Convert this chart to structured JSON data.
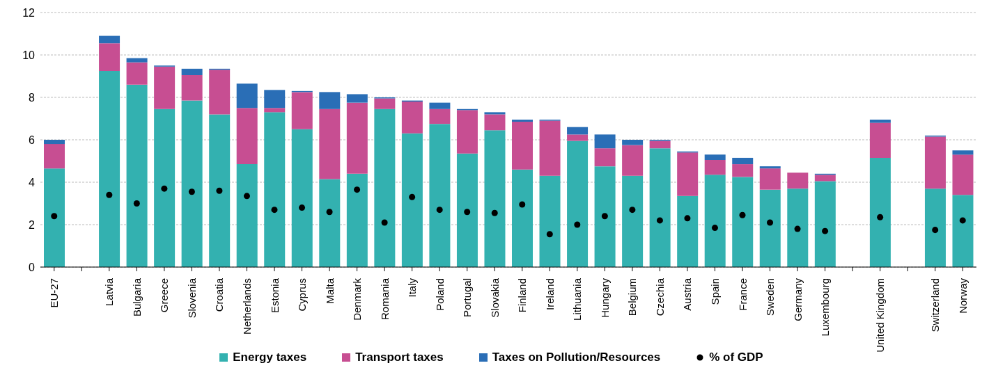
{
  "chart_data": {
    "type": "bar",
    "stacked": true,
    "categories": [
      "EU-27",
      null,
      "Latvia",
      "Bulgaria",
      "Greece",
      "Slovenia",
      "Croatia",
      "Netherlands",
      "Estonia",
      "Cyprus",
      "Malta",
      "Denmark",
      "Romania",
      "Italy",
      "Poland",
      "Portugal",
      "Slovakia",
      "Finland",
      "Ireland",
      "Lithuania",
      "Hungary",
      "Belgium",
      "Czechia",
      "Austria",
      "Spain",
      "France",
      "Sweden",
      "Germany",
      "Luxembourg",
      null,
      "United Kingdom",
      null,
      "Switzerland",
      "Norway"
    ],
    "series": [
      {
        "name": "Energy taxes",
        "color": "#33b1b0",
        "values": [
          4.65,
          null,
          9.25,
          8.6,
          7.45,
          7.85,
          7.2,
          4.85,
          7.3,
          6.5,
          4.15,
          4.4,
          7.45,
          6.3,
          6.75,
          5.35,
          6.45,
          4.6,
          4.3,
          5.95,
          4.75,
          4.3,
          5.6,
          3.35,
          4.35,
          4.25,
          3.65,
          3.7,
          4.05,
          null,
          5.15,
          null,
          3.7,
          3.4
        ]
      },
      {
        "name": "Transport taxes",
        "color": "#c74e92",
        "values": [
          1.15,
          null,
          1.3,
          1.05,
          2.0,
          1.2,
          2.1,
          2.65,
          0.2,
          1.75,
          3.3,
          3.35,
          0.5,
          1.5,
          0.7,
          2.05,
          0.75,
          2.25,
          2.6,
          0.3,
          0.85,
          1.45,
          0.35,
          2.05,
          0.7,
          0.6,
          1.0,
          0.75,
          0.3,
          null,
          1.65,
          null,
          2.45,
          1.9
        ]
      },
      {
        "name": "Taxes on Pollution/Resources",
        "color": "#2a6eb6",
        "values": [
          0.2,
          null,
          0.35,
          0.2,
          0.05,
          0.3,
          0.05,
          1.15,
          0.85,
          0.05,
          0.8,
          0.4,
          0.05,
          0.05,
          0.3,
          0.05,
          0.1,
          0.1,
          0.05,
          0.35,
          0.65,
          0.25,
          0.05,
          0.05,
          0.25,
          0.3,
          0.1,
          null,
          0.05,
          null,
          0.15,
          null,
          0.05,
          0.2
        ]
      },
      {
        "name": "% of GDP",
        "type": "scatter",
        "color": "#000000",
        "marker": "circle",
        "values": [
          2.4,
          null,
          3.4,
          3.0,
          3.7,
          3.55,
          3.6,
          3.35,
          2.7,
          2.8,
          2.6,
          3.65,
          2.1,
          3.3,
          2.7,
          2.6,
          2.55,
          2.95,
          1.55,
          2.0,
          2.4,
          2.7,
          2.2,
          2.3,
          1.85,
          2.45,
          2.1,
          1.8,
          1.7,
          null,
          2.35,
          null,
          1.75,
          2.2
        ]
      }
    ],
    "ylim": [
      0,
      12
    ],
    "yticks": [
      0,
      2,
      4,
      6,
      8,
      10,
      12
    ],
    "grid": "y",
    "legend": "bottom"
  }
}
